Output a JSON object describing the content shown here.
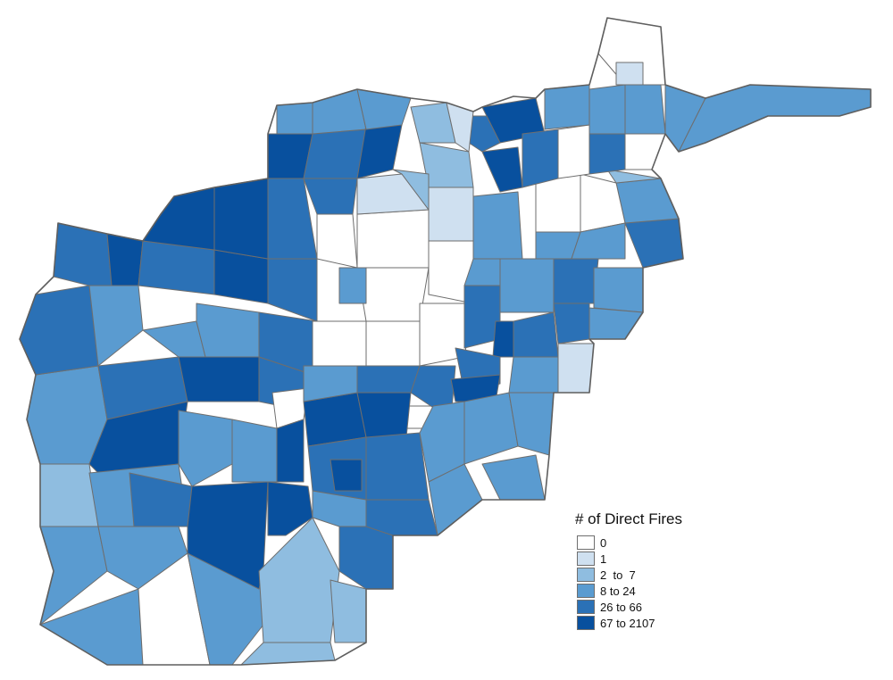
{
  "legend": {
    "title": "# of Direct Fires",
    "classes": [
      {
        "label": "0",
        "color": "#ffffff"
      },
      {
        "label": "1",
        "color": "#cfe0f0"
      },
      {
        "label": "2  to  7",
        "color": "#8fbde0"
      },
      {
        "label": "8 to 24",
        "color": "#5a9bd0"
      },
      {
        "label": "26 to 66",
        "color": "#2b71b6"
      },
      {
        "label": "67 to 2107",
        "color": "#08509e"
      }
    ]
  }
}
